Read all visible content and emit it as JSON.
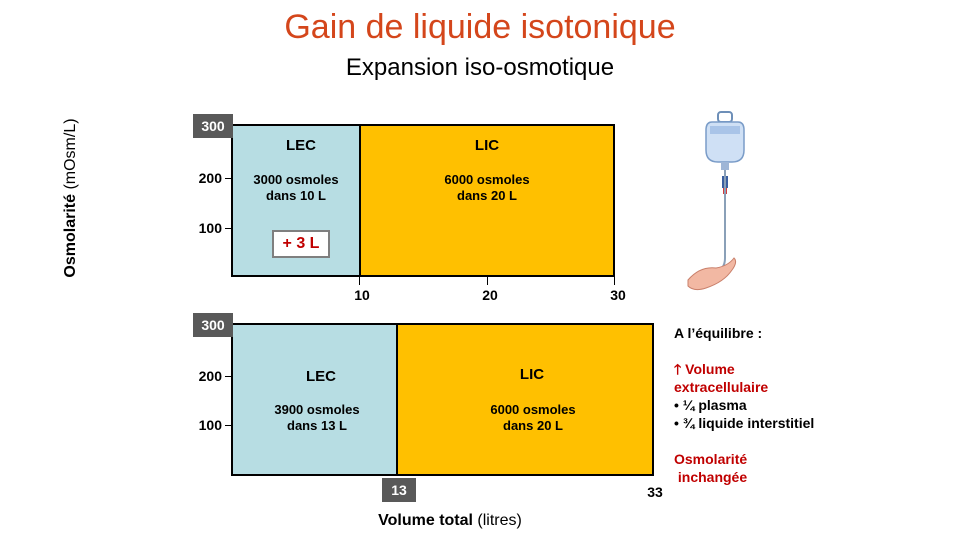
{
  "title": "Gain de liquide isotonique",
  "subtitle": "Expansion iso-osmotique",
  "y_axis_label": {
    "bold": "Osmolarité",
    "rest": " (mOsm/L)"
  },
  "x_axis_label": {
    "bold": "Volume total",
    "rest": " (litres)"
  },
  "top_panel": {
    "lec": {
      "label": "LEC",
      "line1": "3000 osmoles",
      "line2": "dans 10 L",
      "volume_l": 10
    },
    "lic": {
      "label": "LIC",
      "line1": "6000 osmoles",
      "line2": "dans 20 L",
      "volume_l": 20
    },
    "added": "+ 3 L",
    "badge_300": "300",
    "y_ticks": [
      "200",
      "100"
    ],
    "x_ticks": [
      "10",
      "20",
      "30"
    ]
  },
  "bottom_panel": {
    "lec": {
      "label": "LEC",
      "line1": "3900 osmoles",
      "line2": "dans 13 L",
      "volume_l": 13
    },
    "lic": {
      "label": "LIC",
      "line1": "6000 osmoles",
      "line2": "dans 20 L",
      "volume_l": 20
    },
    "badge_300": "300",
    "y_ticks": [
      "200",
      "100"
    ],
    "x_badge": "13",
    "x_end": "33"
  },
  "side_notes": {
    "heading": "A l’équilibre  :",
    "arrow": "🡑",
    "volume_line1": "Volume",
    "volume_line2": "extracellulaire",
    "bullet1": "• ¼ plasma",
    "bullet2": "• ¾ liquide interstitiel",
    "osm_line1": "Osmolarité",
    "osm_line2": " inchangée"
  },
  "colors": {
    "lec": "#b7dde3",
    "lic": "#ffc000",
    "title": "#d4461b",
    "accent": "#c00000",
    "badge": "#595959"
  },
  "illustration": "iv-drip-bag-and-hand-icon"
}
